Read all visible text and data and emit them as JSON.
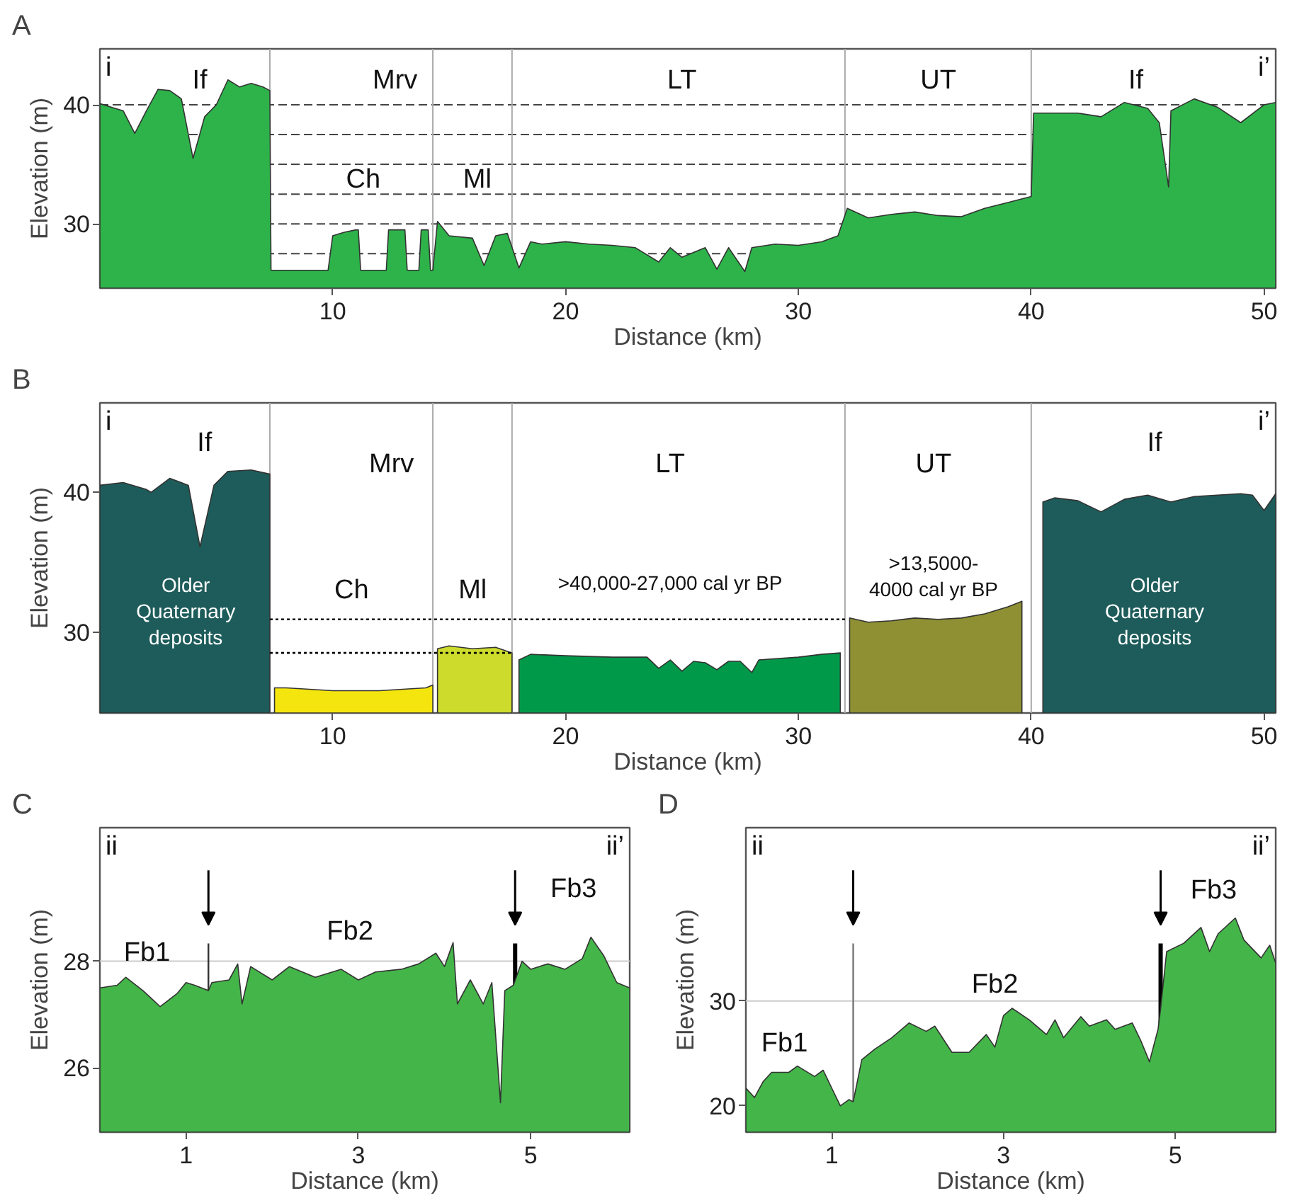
{
  "chart_data": [
    {
      "type": "area",
      "title": "A",
      "xlabel": "Distance (km)",
      "ylabel": "Elevation (m)",
      "xlim": [
        0,
        50.5
      ],
      "ylim": [
        24.6,
        44.7
      ],
      "xticks": [
        10,
        20,
        30,
        40,
        50
      ],
      "yticks": [
        30,
        40
      ],
      "grid": false,
      "series": [
        {
          "color": "#2db34a",
          "x": [
            0,
            0.5,
            1,
            1.5,
            2,
            2.5,
            3,
            3.5,
            4,
            4.5,
            5,
            5.5,
            6,
            6.5,
            7,
            7.3,
            7.35,
            7.5,
            9.8,
            10,
            10.5,
            11,
            11.1,
            11.2,
            12.3,
            12.4,
            12.5,
            13,
            13.1,
            13.2,
            13.7,
            13.8,
            13.9,
            14.1,
            14.2,
            14.3,
            14.5,
            15,
            16,
            16.5,
            17,
            17.5,
            18,
            18.5,
            19,
            20,
            21,
            22,
            23,
            24,
            24.5,
            25,
            26,
            26.5,
            27,
            27.7,
            28,
            29,
            30,
            31,
            31.7,
            32.1,
            33,
            34,
            35,
            36,
            37,
            38,
            39,
            40,
            40.1,
            41,
            42,
            43,
            44,
            45,
            45.5,
            45.9,
            46,
            47,
            48,
            49,
            50,
            50.5
          ],
          "values": [
            40.1,
            39.8,
            39.5,
            37.6,
            39.5,
            41.3,
            41.2,
            40.5,
            35.5,
            39,
            40,
            42.1,
            41.5,
            41.8,
            41.5,
            41.2,
            26.1,
            26.1,
            26.1,
            29,
            29.3,
            29.5,
            29.5,
            26.1,
            26.1,
            29.5,
            29.5,
            29.5,
            29.5,
            26.1,
            26.1,
            29.5,
            29.5,
            29.5,
            26.1,
            26.1,
            30.2,
            29,
            28.8,
            26.5,
            29,
            29.2,
            26.3,
            28.5,
            28.3,
            28.5,
            28.3,
            28.2,
            28,
            26.8,
            28,
            27.2,
            28,
            26.2,
            28,
            26,
            28,
            28.3,
            28.2,
            28.5,
            29,
            31.3,
            30.5,
            30.8,
            31,
            30.7,
            30.6,
            31.3,
            31.8,
            32.3,
            39.3,
            39.3,
            39.3,
            39,
            40.2,
            39.7,
            38.5,
            33.1,
            39.5,
            40.5,
            39.8,
            38.5,
            40,
            40.2
          ]
        }
      ],
      "ref_lines": [
        {
          "axis": "y",
          "value": 27.5,
          "color": "#444444",
          "line_style": "dashed"
        },
        {
          "axis": "y",
          "value": 30,
          "color": "#444444",
          "line_style": "dashed"
        },
        {
          "axis": "y",
          "value": 32.5,
          "color": "#444444",
          "line_style": "dashed"
        },
        {
          "axis": "y",
          "value": 35,
          "color": "#444444",
          "line_style": "dashed"
        },
        {
          "axis": "y",
          "value": 37.5,
          "color": "#444444",
          "line_style": "dashed"
        },
        {
          "axis": "y",
          "value": 40,
          "color": "#444444",
          "line_style": "dashed"
        },
        {
          "axis": "x",
          "value": 7.3,
          "color": "#aaaaaa"
        },
        {
          "axis": "x",
          "value": 14.3,
          "color": "#aaaaaa"
        },
        {
          "axis": "x",
          "value": 17.7,
          "color": "#aaaaaa"
        },
        {
          "axis": "x",
          "value": 32,
          "color": "#aaaaaa"
        },
        {
          "axis": "x",
          "value": 40,
          "color": "#aaaaaa"
        }
      ],
      "annotations": [
        "i",
        "i’",
        "If",
        "Mrv",
        "Ch",
        "Ml",
        "LT",
        "UT",
        "If"
      ]
    },
    {
      "type": "area",
      "title": "B",
      "xlabel": "Distance (km)",
      "ylabel": "Elevation (m)",
      "xlim": [
        0,
        50.5
      ],
      "ylim": [
        24.2,
        46.4
      ],
      "xticks": [
        10,
        20,
        30,
        40,
        50
      ],
      "yticks": [
        30,
        40
      ],
      "grid": false,
      "series": [
        {
          "color": "#1d5c5a",
          "x": [
            0,
            1,
            2,
            2.2,
            3,
            3.8,
            4.3,
            4.9,
            5.5,
            6.5,
            7.3
          ],
          "values": [
            40.5,
            40.7,
            40.2,
            40,
            41,
            40.5,
            36.1,
            40.5,
            41.5,
            41.6,
            41.3
          ]
        },
        {
          "color": "#f5e50f",
          "x": [
            7.5,
            8,
            10,
            12,
            14,
            14.3
          ],
          "values": [
            26,
            26,
            25.8,
            25.8,
            26,
            26.2
          ]
        },
        {
          "color": "#cddc2c",
          "x": [
            14.5,
            15,
            16,
            17,
            17.7
          ],
          "values": [
            28.8,
            29,
            28.8,
            28.9,
            28.5
          ]
        },
        {
          "color": "#00994a",
          "x": [
            18,
            18.5,
            20,
            22,
            23.5,
            24,
            24.5,
            25,
            25.5,
            26,
            26.5,
            27,
            27.5,
            28,
            28.3,
            30,
            31,
            31.8
          ],
          "values": [
            28,
            28.4,
            28.3,
            28.2,
            28.2,
            27.4,
            28,
            27.2,
            27.9,
            27.8,
            27.3,
            27.9,
            27.9,
            27.1,
            28,
            28.2,
            28.4,
            28.5
          ]
        },
        {
          "color": "#8e9033",
          "x": [
            32.2,
            33,
            34,
            35,
            36,
            37,
            38,
            39,
            39.6
          ],
          "values": [
            31,
            30.7,
            30.8,
            31,
            30.9,
            31,
            31.3,
            31.8,
            32.2
          ]
        },
        {
          "color": "#1d5c5a",
          "x": [
            40.5,
            41,
            42,
            43,
            44,
            45,
            46,
            47,
            48,
            49,
            49.5,
            50,
            50.5
          ],
          "values": [
            39.3,
            39.6,
            39.4,
            38.6,
            39.5,
            39.8,
            39.3,
            39.7,
            39.8,
            39.9,
            39.8,
            38.7,
            39.9
          ]
        },
        {
          "type": "line",
          "line_style": "dotted",
          "color": "#000000",
          "x": [
            7.3,
            32
          ],
          "values": [
            30.9,
            30.9
          ]
        },
        {
          "type": "line",
          "line_style": "dotted",
          "color": "#000000",
          "x": [
            7.3,
            17.7
          ],
          "values": [
            28.5,
            28.5
          ]
        }
      ],
      "ref_lines": [
        {
          "axis": "x",
          "value": 7.3,
          "color": "#aaaaaa"
        },
        {
          "axis": "x",
          "value": 14.3,
          "color": "#aaaaaa"
        },
        {
          "axis": "x",
          "value": 17.7,
          "color": "#aaaaaa"
        },
        {
          "axis": "x",
          "value": 32,
          "color": "#aaaaaa"
        },
        {
          "axis": "x",
          "value": 40,
          "color": "#aaaaaa"
        }
      ],
      "annotations": [
        "i",
        "i’",
        "If",
        "Mrv",
        "Ch",
        "Ml",
        "LT",
        "UT",
        "If",
        "Older\nQuaternary\ndeposits",
        ">40,000-27,000 cal yr BP",
        ">13,5000-\n4000 cal yr BP",
        "Older\nQuaternary\ndeposits"
      ]
    },
    {
      "type": "area",
      "title": "C",
      "xlabel": "Distance (km)",
      "ylabel": "Elevation (m)",
      "xlim": [
        0,
        6.15
      ],
      "ylim": [
        24.8,
        30.5
      ],
      "xticks": [
        1,
        3,
        5
      ],
      "yticks": [
        26,
        28
      ],
      "grid": false,
      "series": [
        {
          "color": "#44b549",
          "x": [
            0,
            0.2,
            0.3,
            0.5,
            0.6,
            0.7,
            0.9,
            1.0,
            1.1,
            1.26,
            1.3,
            1.5,
            1.6,
            1.65,
            1.75,
            2.0,
            2.2,
            2.5,
            2.8,
            3.0,
            3.2,
            3.5,
            3.7,
            3.9,
            4.0,
            4.1,
            4.15,
            4.3,
            4.45,
            4.55,
            4.65,
            4.7,
            4.8,
            4.9,
            5.0,
            5.2,
            5.4,
            5.6,
            5.7,
            5.85,
            6.0,
            6.15
          ],
          "values": [
            27.5,
            27.55,
            27.7,
            27.45,
            27.3,
            27.15,
            27.4,
            27.6,
            27.55,
            27.45,
            27.6,
            27.65,
            27.95,
            27.2,
            27.9,
            27.65,
            27.9,
            27.7,
            27.85,
            27.65,
            27.8,
            27.85,
            27.95,
            28.15,
            27.9,
            28.35,
            27.2,
            27.65,
            27.2,
            27.6,
            25.35,
            27.45,
            27.55,
            28,
            27.85,
            27.95,
            27.85,
            28.05,
            28.45,
            28.1,
            27.6,
            27.5
          ]
        }
      ],
      "ref_lines": [
        {
          "axis": "y",
          "value": 28,
          "color": "#cccccc"
        },
        {
          "axis": "x",
          "value": 1.26,
          "color": "#333333",
          "line_style": "solid"
        },
        {
          "axis": "x",
          "value": 4.82,
          "color": "#000000",
          "line_style": "solid"
        }
      ],
      "annotations": [
        "ii",
        "ii’",
        "Fb1",
        "Fb2",
        "Fb3"
      ]
    },
    {
      "type": "area",
      "title": "D",
      "xlabel": "Distance (km)",
      "ylabel": "Elevation (m)",
      "xlim": [
        0,
        6.17
      ],
      "ylim": [
        17.5,
        46.5
      ],
      "xticks": [
        1,
        3,
        5
      ],
      "yticks": [
        20,
        30
      ],
      "grid": false,
      "series": [
        {
          "color": "#44b549",
          "x": [
            0,
            0.1,
            0.2,
            0.3,
            0.5,
            0.6,
            0.8,
            0.9,
            1.0,
            1.1,
            1.2,
            1.25,
            1.35,
            1.5,
            1.7,
            1.9,
            2.1,
            2.2,
            2.4,
            2.6,
            2.8,
            2.9,
            3.0,
            3.1,
            3.3,
            3.5,
            3.6,
            3.7,
            3.9,
            4.0,
            4.2,
            4.3,
            4.5,
            4.6,
            4.7,
            4.8,
            4.83,
            4.9,
            5.1,
            5.3,
            5.4,
            5.5,
            5.7,
            5.8,
            6.0,
            6.1,
            6.17
          ],
          "values": [
            21.7,
            20.8,
            22.3,
            23.2,
            23.2,
            23.8,
            22.8,
            23.4,
            21.7,
            20,
            20.6,
            20.4,
            24.4,
            25.4,
            26.5,
            27.9,
            27.1,
            27.6,
            25.1,
            25.1,
            26.8,
            25.6,
            28.6,
            29.3,
            28.2,
            26.8,
            28.2,
            26.5,
            28.5,
            27.6,
            28.2,
            27.3,
            27.9,
            26.2,
            24.2,
            27.3,
            29.3,
            34.7,
            35.5,
            37,
            34.7,
            36.4,
            37.9,
            35.8,
            34.1,
            35.3,
            33.6
          ]
        }
      ],
      "ref_lines": [
        {
          "axis": "y",
          "value": 30,
          "color": "#cccccc"
        },
        {
          "axis": "x",
          "value": 1.25,
          "color": "#777777",
          "line_style": "solid"
        },
        {
          "axis": "x",
          "value": 4.83,
          "color": "#000000",
          "line_style": "solid"
        }
      ],
      "annotations": [
        "ii",
        "ii’",
        "Fb1",
        "Fb2",
        "Fb3"
      ]
    }
  ]
}
